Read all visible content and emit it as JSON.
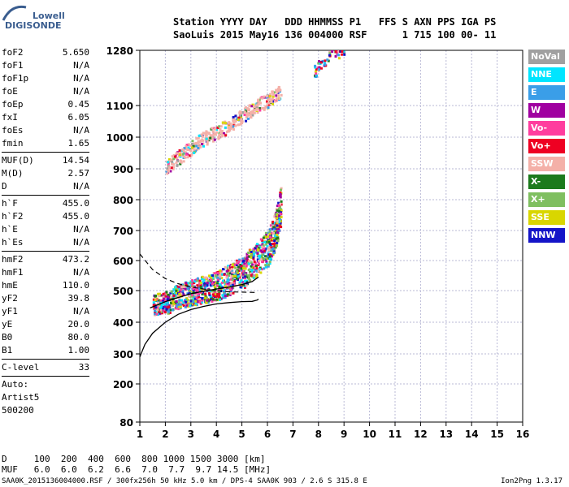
{
  "brand": {
    "line1": "Lowell",
    "line2": "DIGISONDE"
  },
  "header": {
    "line1": "Station YYYY DAY   DDD HHMMSS P1   FFS S AXN PPS IGA PS",
    "line2": "SaoLuis 2015 May16 136 004000 RSF      1 715 100 00- 11"
  },
  "params": [
    {
      "k": "foF2",
      "v": "5.650"
    },
    {
      "k": "foF1",
      "v": "N/A"
    },
    {
      "k": "foF1p",
      "v": "N/A"
    },
    {
      "k": "foE",
      "v": "N/A"
    },
    {
      "k": "foEp",
      "v": "0.45"
    },
    {
      "k": "fxI",
      "v": "6.05"
    },
    {
      "k": "foEs",
      "v": "N/A"
    },
    {
      "k": "fmin",
      "v": "1.65"
    },
    {
      "sep": true
    },
    {
      "k": "MUF(D)",
      "v": "14.54"
    },
    {
      "k": "M(D)",
      "v": "2.57"
    },
    {
      "k": "D",
      "v": "N/A"
    },
    {
      "sep": true
    },
    {
      "k": "h`F",
      "v": "455.0"
    },
    {
      "k": "h`F2",
      "v": "455.0"
    },
    {
      "k": "h`E",
      "v": "N/A"
    },
    {
      "k": "h`Es",
      "v": "N/A"
    },
    {
      "sep": true
    },
    {
      "k": "hmF2",
      "v": "473.2"
    },
    {
      "k": "hmF1",
      "v": "N/A"
    },
    {
      "k": "hmE",
      "v": "110.0"
    },
    {
      "k": "yF2",
      "v": "39.8"
    },
    {
      "k": "yF1",
      "v": "N/A"
    },
    {
      "k": "yE",
      "v": "20.0"
    },
    {
      "k": "B0",
      "v": "80.0"
    },
    {
      "k": "B1",
      "v": "1.00"
    },
    {
      "sep": true
    },
    {
      "k": "C-level",
      "v": "33"
    },
    {
      "sep": true
    },
    {
      "k": "Auto:",
      "v": ""
    },
    {
      "k": "Artist5",
      "v": ""
    },
    {
      "k": "500200",
      "v": ""
    }
  ],
  "legend": [
    {
      "label": "NoVal",
      "color": "#a0a0a0"
    },
    {
      "label": "NNE",
      "color": "#00e5ff"
    },
    {
      "label": "E",
      "color": "#3a9ee8"
    },
    {
      "label": "W",
      "color": "#a000a0"
    },
    {
      "label": "Vo-",
      "color": "#ff3d9e"
    },
    {
      "label": "Vo+",
      "color": "#ee0022"
    },
    {
      "label": "SSW",
      "color": "#f4b0a8"
    },
    {
      "label": "X-",
      "color": "#1c7a1c"
    },
    {
      "label": "X+",
      "color": "#7fbf60"
    },
    {
      "label": "SSE",
      "color": "#d9d600"
    },
    {
      "label": "NNW",
      "color": "#1414c8"
    }
  ],
  "footer": {
    "d_line": "D     100  200  400  600  800 1000 1500 3000 [km]",
    "muf_line": "MUF   6.0  6.0  6.2  6.6  7.0  7.7  9.7 14.5 [MHz]",
    "file_line": "SAA0K_2015136004000.RSF / 300fx256h 50 kHz 5.0 km / DPS-4 SAA0K 903 / 2.6 S 315.8 E",
    "version": "Ion2Png 1.3.17"
  },
  "chart_data": {
    "type": "scatter",
    "x_ticks": [
      1,
      2,
      3,
      4,
      5,
      6,
      7,
      8,
      9,
      10,
      11,
      12,
      13,
      14,
      15,
      16
    ],
    "y_ticks": [
      80,
      200,
      300,
      400,
      500,
      600,
      700,
      800,
      900,
      1000,
      1100,
      1280
    ],
    "xlim": [
      1,
      16
    ],
    "ylim": [
      80,
      1280
    ],
    "grid": true,
    "legend_position": "right",
    "profile": {
      "x": [
        1.0,
        1.2,
        1.5,
        2.0,
        2.5,
        3.0,
        3.5,
        4.0,
        4.5,
        5.0,
        5.4,
        5.6,
        5.65
      ],
      "y": [
        290,
        330,
        365,
        400,
        425,
        440,
        450,
        458,
        462,
        465,
        466,
        470,
        473
      ]
    },
    "trace_dashed": {
      "x": [
        1.0,
        1.5,
        2.0,
        2.5,
        3.0,
        3.5,
        4.0,
        4.5,
        5.0,
        5.5
      ],
      "y": [
        622,
        570,
        540,
        523,
        512,
        505,
        500,
        496,
        495,
        494
      ]
    },
    "trace_solid": {
      "x": [
        1.4,
        2.0,
        2.5,
        3.0,
        3.5,
        4.0,
        4.5,
        5.0,
        5.4,
        5.65
      ],
      "y": [
        445,
        465,
        478,
        490,
        498,
        505,
        512,
        520,
        530,
        545
      ]
    },
    "clusters": [
      {
        "name": "F-trace",
        "points": [
          [
            1.5,
            445
          ],
          [
            2,
            450
          ],
          [
            2.5,
            470
          ],
          [
            3,
            480
          ],
          [
            3.5,
            490
          ],
          [
            4,
            500
          ],
          [
            4.5,
            520
          ],
          [
            5,
            540
          ],
          [
            5.5,
            580
          ],
          [
            6,
            620
          ],
          [
            6.3,
            680
          ],
          [
            6.5,
            760
          ]
        ]
      },
      {
        "name": "2F-trace",
        "points": [
          [
            2,
            900
          ],
          [
            2.5,
            930
          ],
          [
            3,
            960
          ],
          [
            3.5,
            990
          ],
          [
            4,
            1010
          ],
          [
            4.5,
            1030
          ],
          [
            5,
            1060
          ],
          [
            5.5,
            1090
          ],
          [
            6,
            1110
          ],
          [
            6.5,
            1140
          ]
        ]
      },
      {
        "name": "3F-trace",
        "points": [
          [
            7.8,
            1200
          ],
          [
            8,
            1230
          ],
          [
            8.5,
            1260
          ],
          [
            9,
            1280
          ]
        ]
      }
    ]
  }
}
